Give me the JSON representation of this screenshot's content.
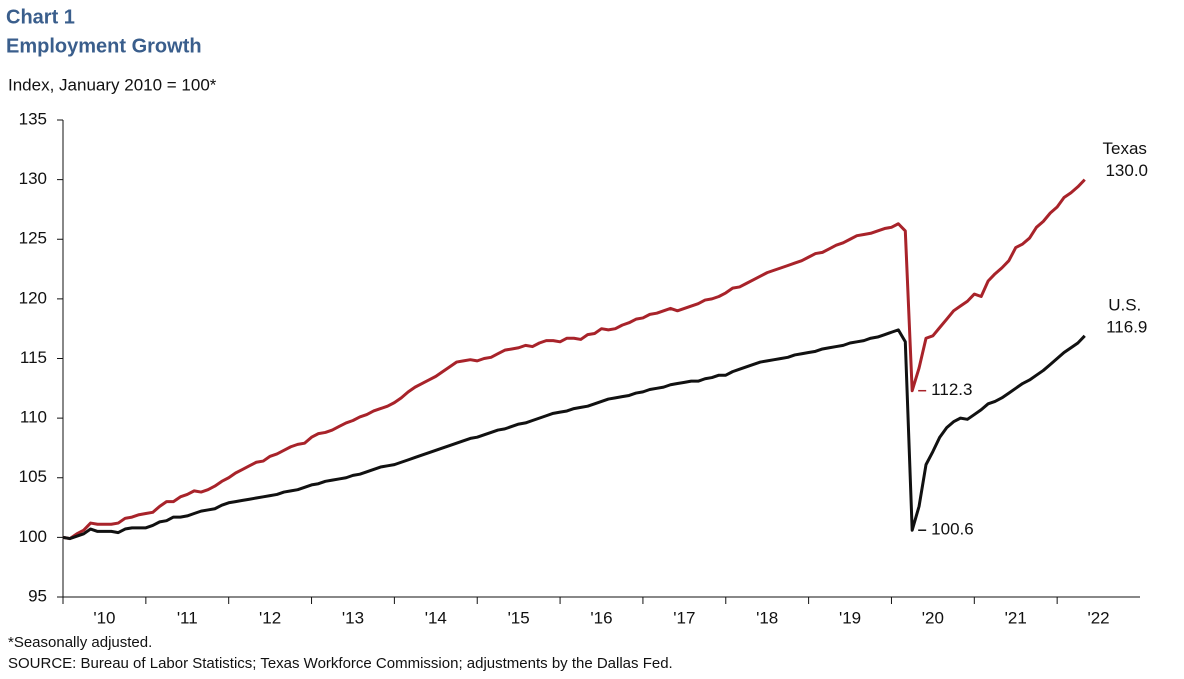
{
  "chart_data": {
    "type": "line",
    "title": "Chart 1",
    "subtitle": "Employment Growth",
    "y_label": "Index, January 2010 = 100*",
    "footnote": "*Seasonally adjusted.",
    "source": "SOURCE: Bureau of Labor Statistics; Texas Workforce Commission; adjustments by the Dallas Fed.",
    "x": [
      2010,
      2010.083,
      2010.167,
      2010.25,
      2010.333,
      2010.417,
      2010.5,
      2010.583,
      2010.667,
      2010.75,
      2010.833,
      2010.917,
      2011,
      2011.083,
      2011.167,
      2011.25,
      2011.333,
      2011.417,
      2011.5,
      2011.583,
      2011.667,
      2011.75,
      2011.833,
      2011.917,
      2012,
      2012.083,
      2012.167,
      2012.25,
      2012.333,
      2012.417,
      2012.5,
      2012.583,
      2012.667,
      2012.75,
      2012.833,
      2012.917,
      2013,
      2013.083,
      2013.167,
      2013.25,
      2013.333,
      2013.417,
      2013.5,
      2013.583,
      2013.667,
      2013.75,
      2013.833,
      2013.917,
      2014,
      2014.083,
      2014.167,
      2014.25,
      2014.333,
      2014.417,
      2014.5,
      2014.583,
      2014.667,
      2014.75,
      2014.833,
      2014.917,
      2015,
      2015.083,
      2015.167,
      2015.25,
      2015.333,
      2015.417,
      2015.5,
      2015.583,
      2015.667,
      2015.75,
      2015.833,
      2015.917,
      2016,
      2016.083,
      2016.167,
      2016.25,
      2016.333,
      2016.417,
      2016.5,
      2016.583,
      2016.667,
      2016.75,
      2016.833,
      2016.917,
      2017,
      2017.083,
      2017.167,
      2017.25,
      2017.333,
      2017.417,
      2017.5,
      2017.583,
      2017.667,
      2017.75,
      2017.833,
      2017.917,
      2018,
      2018.083,
      2018.167,
      2018.25,
      2018.333,
      2018.417,
      2018.5,
      2018.583,
      2018.667,
      2018.75,
      2018.833,
      2018.917,
      2019,
      2019.083,
      2019.167,
      2019.25,
      2019.333,
      2019.417,
      2019.5,
      2019.583,
      2019.667,
      2019.75,
      2019.833,
      2019.917,
      2020,
      2020.083,
      2020.167,
      2020.25,
      2020.333,
      2020.417,
      2020.5,
      2020.583,
      2020.667,
      2020.75,
      2020.833,
      2020.917,
      2021,
      2021.083,
      2021.167,
      2021.25,
      2021.333,
      2021.417,
      2021.5,
      2021.583,
      2021.667,
      2021.75,
      2021.833,
      2021.917,
      2022,
      2022.083,
      2022.167,
      2022.25,
      2022.333
    ],
    "series": [
      {
        "name": "Texas",
        "color": "#a8232a",
        "values": [
          100.0,
          99.9,
          100.3,
          100.6,
          101.2,
          101.1,
          101.1,
          101.1,
          101.2,
          101.6,
          101.7,
          101.9,
          102.0,
          102.1,
          102.6,
          103.0,
          103.0,
          103.4,
          103.6,
          103.9,
          103.8,
          104.0,
          104.3,
          104.7,
          105.0,
          105.4,
          105.7,
          106.0,
          106.3,
          106.4,
          106.8,
          107.0,
          107.3,
          107.6,
          107.8,
          107.9,
          108.4,
          108.7,
          108.8,
          109.0,
          109.3,
          109.6,
          109.8,
          110.1,
          110.3,
          110.6,
          110.8,
          111.0,
          111.3,
          111.7,
          112.2,
          112.6,
          112.9,
          113.2,
          113.5,
          113.9,
          114.3,
          114.7,
          114.8,
          114.9,
          114.8,
          115.0,
          115.1,
          115.4,
          115.7,
          115.8,
          115.9,
          116.1,
          116.0,
          116.3,
          116.5,
          116.5,
          116.4,
          116.7,
          116.7,
          116.6,
          117.0,
          117.1,
          117.5,
          117.4,
          117.5,
          117.8,
          118.0,
          118.3,
          118.4,
          118.7,
          118.8,
          119.0,
          119.2,
          119.0,
          119.2,
          119.4,
          119.6,
          119.9,
          120.0,
          120.2,
          120.5,
          120.9,
          121.0,
          121.3,
          121.6,
          121.9,
          122.2,
          122.4,
          122.6,
          122.8,
          123.0,
          123.2,
          123.5,
          123.8,
          123.9,
          124.2,
          124.5,
          124.7,
          125.0,
          125.3,
          125.4,
          125.5,
          125.7,
          125.9,
          126.0,
          126.3,
          125.7,
          112.3,
          114.2,
          116.7,
          116.9,
          117.6,
          118.3,
          119.0,
          119.4,
          119.8,
          120.4,
          120.2,
          121.5,
          122.1,
          122.6,
          123.2,
          124.3,
          124.6,
          125.1,
          126.0,
          126.5,
          127.2,
          127.7,
          128.5,
          128.9,
          129.4,
          130.0
        ],
        "value_labels": [
          null,
          null,
          null,
          null,
          null,
          null,
          null,
          null,
          null,
          null,
          null,
          null,
          null,
          null,
          null,
          null,
          null,
          null,
          null,
          null,
          null,
          null,
          null,
          null,
          null,
          null,
          null,
          null,
          null,
          null,
          null,
          null,
          null,
          null,
          null,
          null,
          null,
          null,
          null,
          null,
          null,
          null,
          null,
          null,
          null,
          null,
          null,
          null,
          null,
          null,
          null,
          null,
          null,
          null,
          null,
          null,
          null,
          null,
          null,
          null,
          null,
          null,
          null,
          null,
          null,
          null,
          null,
          null,
          null,
          null,
          null,
          null,
          null,
          null,
          null,
          null,
          null,
          null,
          null,
          null,
          null,
          null,
          null,
          null,
          null,
          null,
          null,
          null,
          null,
          null,
          null,
          null,
          null,
          null,
          null,
          null,
          null,
          null,
          null,
          null,
          null,
          null,
          null,
          null,
          null,
          null,
          null,
          null,
          null,
          null,
          null,
          null,
          null,
          null,
          null,
          null,
          null,
          null,
          null,
          null,
          null,
          null,
          null,
          "112.3",
          null,
          null,
          null,
          null,
          null,
          null,
          null,
          null,
          null,
          null,
          null,
          null,
          null,
          null,
          null,
          null,
          null,
          null,
          null,
          null,
          null,
          null,
          null,
          null,
          "130.0"
        ]
      },
      {
        "name": "U.S.",
        "color": "#111111",
        "values": [
          100.0,
          99.9,
          100.1,
          100.3,
          100.7,
          100.5,
          100.5,
          100.5,
          100.4,
          100.7,
          100.8,
          100.8,
          100.8,
          101.0,
          101.3,
          101.4,
          101.7,
          101.7,
          101.8,
          102.0,
          102.2,
          102.3,
          102.4,
          102.7,
          102.9,
          103.0,
          103.1,
          103.2,
          103.3,
          103.4,
          103.5,
          103.6,
          103.8,
          103.9,
          104.0,
          104.2,
          104.4,
          104.5,
          104.7,
          104.8,
          104.9,
          105.0,
          105.2,
          105.3,
          105.5,
          105.7,
          105.9,
          106.0,
          106.1,
          106.3,
          106.5,
          106.7,
          106.9,
          107.1,
          107.3,
          107.5,
          107.7,
          107.9,
          108.1,
          108.3,
          108.4,
          108.6,
          108.8,
          109.0,
          109.1,
          109.3,
          109.5,
          109.6,
          109.8,
          110.0,
          110.2,
          110.4,
          110.5,
          110.6,
          110.8,
          110.9,
          111.0,
          111.2,
          111.4,
          111.6,
          111.7,
          111.8,
          111.9,
          112.1,
          112.2,
          112.4,
          112.5,
          112.6,
          112.8,
          112.9,
          113.0,
          113.1,
          113.1,
          113.3,
          113.4,
          113.6,
          113.6,
          113.9,
          114.1,
          114.3,
          114.5,
          114.7,
          114.8,
          114.9,
          115.0,
          115.1,
          115.3,
          115.4,
          115.5,
          115.6,
          115.8,
          115.9,
          116.0,
          116.1,
          116.3,
          116.4,
          116.5,
          116.7,
          116.8,
          117.0,
          117.2,
          117.4,
          116.4,
          100.6,
          102.6,
          106.1,
          107.2,
          108.4,
          109.2,
          109.7,
          110.0,
          109.9,
          110.3,
          110.7,
          111.2,
          111.4,
          111.7,
          112.1,
          112.5,
          112.9,
          113.2,
          113.6,
          114.0,
          114.5,
          115.0,
          115.5,
          115.9,
          116.3,
          116.9
        ],
        "value_labels": [
          null,
          null,
          null,
          null,
          null,
          null,
          null,
          null,
          null,
          null,
          null,
          null,
          null,
          null,
          null,
          null,
          null,
          null,
          null,
          null,
          null,
          null,
          null,
          null,
          null,
          null,
          null,
          null,
          null,
          null,
          null,
          null,
          null,
          null,
          null,
          null,
          null,
          null,
          null,
          null,
          null,
          null,
          null,
          null,
          null,
          null,
          null,
          null,
          null,
          null,
          null,
          null,
          null,
          null,
          null,
          null,
          null,
          null,
          null,
          null,
          null,
          null,
          null,
          null,
          null,
          null,
          null,
          null,
          null,
          null,
          null,
          null,
          null,
          null,
          null,
          null,
          null,
          null,
          null,
          null,
          null,
          null,
          null,
          null,
          null,
          null,
          null,
          null,
          null,
          null,
          null,
          null,
          null,
          null,
          null,
          null,
          null,
          null,
          null,
          null,
          null,
          null,
          null,
          null,
          null,
          null,
          null,
          null,
          null,
          null,
          null,
          null,
          null,
          null,
          null,
          null,
          null,
          null,
          null,
          null,
          null,
          null,
          null,
          "100.6",
          null,
          null,
          null,
          null,
          null,
          null,
          null,
          null,
          null,
          null,
          null,
          null,
          null,
          null,
          null,
          null,
          null,
          null,
          null,
          null,
          null,
          null,
          null,
          null,
          "116.9"
        ]
      }
    ],
    "xlim": [
      2010,
      2023
    ],
    "xticks": [
      {
        "value": 2010,
        "label": "'10"
      },
      {
        "value": 2011,
        "label": "'11"
      },
      {
        "value": 2012,
        "label": "'12"
      },
      {
        "value": 2013,
        "label": "'13"
      },
      {
        "value": 2014,
        "label": "'14"
      },
      {
        "value": 2015,
        "label": "'15"
      },
      {
        "value": 2016,
        "label": "'16"
      },
      {
        "value": 2017,
        "label": "'17"
      },
      {
        "value": 2018,
        "label": "'18"
      },
      {
        "value": 2019,
        "label": "'19"
      },
      {
        "value": 2020,
        "label": "'20"
      },
      {
        "value": 2021,
        "label": "'21"
      },
      {
        "value": 2022,
        "label": "'22"
      }
    ],
    "ylim": [
      95,
      135
    ],
    "yticks": [
      95,
      100,
      105,
      110,
      115,
      120,
      125,
      130,
      135
    ],
    "grid": false
  }
}
